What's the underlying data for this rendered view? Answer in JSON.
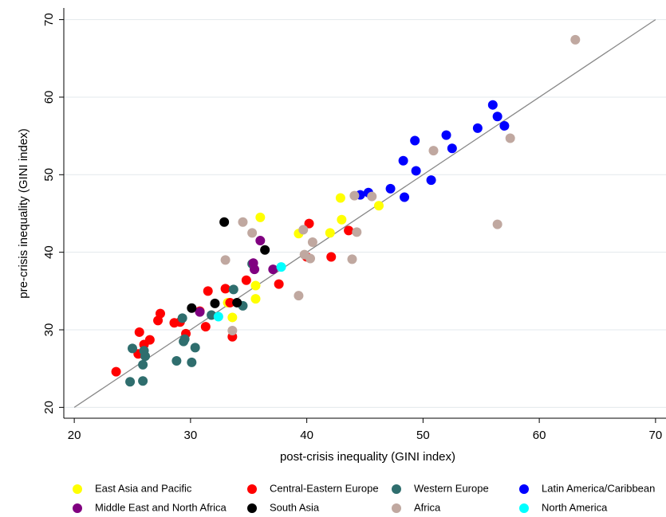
{
  "chart_data": {
    "type": "scatter",
    "x_label": "post-crisis inequality (GINI index)",
    "y_label": "pre-crisis inequality (GINI index)",
    "xlim": [
      19.1,
      70.9
    ],
    "ylim": [
      18.6,
      71.5
    ],
    "xticks": [
      20,
      30,
      40,
      50,
      60,
      70
    ],
    "yticks": [
      20,
      30,
      40,
      50,
      60,
      70
    ],
    "grid": true,
    "reference_line": [
      20,
      70
    ],
    "series": [
      {
        "name": "East Asia and Pacific",
        "color": "#ffff00",
        "x": [
          36.0,
          39.3,
          42.0,
          42.9,
          43.0,
          46.2,
          35.6,
          35.6,
          33.6,
          33.2
        ],
        "y": [
          44.5,
          42.4,
          42.5,
          47.0,
          44.2,
          46.0,
          35.7,
          34.0,
          31.6,
          33.5
        ]
      },
      {
        "name": "Central-Eastern Europe",
        "color": "#ff0000",
        "x": [
          23.6,
          25.6,
          25.5,
          26.0,
          26.5,
          27.4,
          27.2,
          28.6,
          29.1,
          29.6,
          30.8,
          31.3,
          31.5,
          33.0,
          33.4,
          33.6,
          34.8,
          37.6,
          40.0,
          40.2,
          42.1,
          43.6
        ],
        "y": [
          24.6,
          29.7,
          26.9,
          28.1,
          28.7,
          32.1,
          31.2,
          30.9,
          31.0,
          29.5,
          32.4,
          30.4,
          35.0,
          35.3,
          33.5,
          29.1,
          36.4,
          35.9,
          39.4,
          43.7,
          39.4,
          42.8
        ]
      },
      {
        "name": "Western Europe",
        "color": "#2f6e6e",
        "x": [
          24.8,
          25.0,
          25.9,
          25.9,
          26.0,
          26.1,
          28.8,
          29.4,
          29.5,
          29.3,
          30.1,
          30.4,
          31.8,
          33.7,
          34.5,
          35.3
        ],
        "y": [
          23.3,
          27.6,
          23.4,
          25.5,
          27.3,
          26.6,
          26.0,
          28.5,
          28.8,
          31.5,
          25.8,
          27.7,
          31.9,
          35.2,
          33.1,
          38.5
        ]
      },
      {
        "name": "Latin America/Caribbean",
        "color": "#0000ff",
        "x": [
          44.6,
          45.3,
          47.2,
          48.3,
          48.4,
          49.3,
          49.4,
          50.7,
          52.0,
          52.5,
          54.7,
          56.0,
          56.4,
          57.0
        ],
        "y": [
          47.4,
          47.7,
          48.2,
          51.8,
          47.1,
          54.4,
          50.5,
          49.3,
          55.1,
          53.4,
          56.0,
          59.0,
          57.5,
          56.3
        ]
      },
      {
        "name": "Middle East and North Africa",
        "color": "#800080",
        "x": [
          30.8,
          35.4,
          35.5,
          36.0,
          37.1
        ],
        "y": [
          32.3,
          38.6,
          37.8,
          41.5,
          37.8
        ]
      },
      {
        "name": "South Asia",
        "color": "#000000",
        "x": [
          30.1,
          32.1,
          32.9,
          34.0,
          36.4
        ],
        "y": [
          32.8,
          33.4,
          43.9,
          33.5,
          40.3
        ]
      },
      {
        "name": "Africa",
        "color": "#c0a8a0",
        "x": [
          33.0,
          33.6,
          34.5,
          35.3,
          39.3,
          39.7,
          39.8,
          40.3,
          40.5,
          43.9,
          44.1,
          44.3,
          45.6,
          50.9,
          57.5,
          56.4,
          63.1
        ],
        "y": [
          39.0,
          29.9,
          43.9,
          42.5,
          34.4,
          42.9,
          39.7,
          39.2,
          41.3,
          39.1,
          47.3,
          42.6,
          47.2,
          53.1,
          54.7,
          43.6,
          67.4
        ]
      },
      {
        "name": "North America",
        "color": "#00ffff",
        "x": [
          32.4,
          37.8
        ],
        "y": [
          31.7,
          38.1
        ]
      }
    ]
  }
}
